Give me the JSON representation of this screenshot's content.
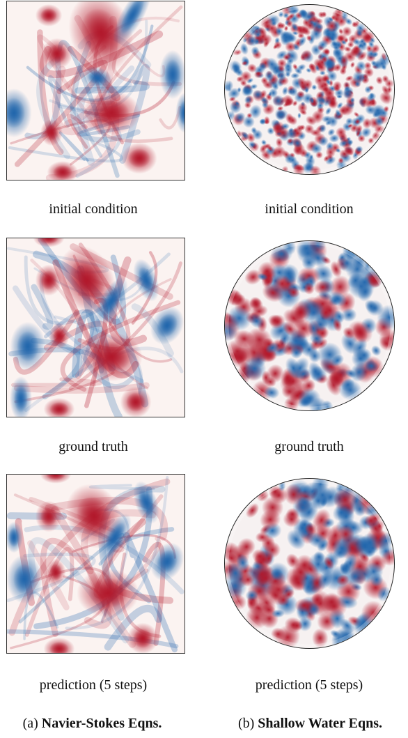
{
  "columns": [
    {
      "tag": "(a)",
      "title": "Navier-Stokes Eqns.",
      "captions": [
        "initial condition",
        "ground truth",
        "prediction (5 steps)"
      ]
    },
    {
      "tag": "(b)",
      "title": "Shallow Water Eqns.",
      "captions": [
        "initial condition",
        "ground truth",
        "prediction (5 steps)"
      ]
    }
  ],
  "colors": {
    "positive": "#b2182b",
    "negative": "#2166ac",
    "neutral": "#f7f7f7"
  }
}
